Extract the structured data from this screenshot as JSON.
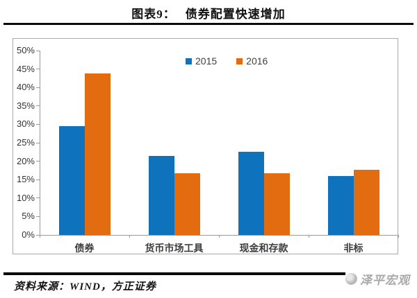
{
  "header": {
    "title_prefix": "图表9：",
    "title_text": "债券配置快速增加"
  },
  "chart_data": {
    "type": "bar",
    "categories": [
      "债券",
      "货币市场工具",
      "现金和存款",
      "非标"
    ],
    "series": [
      {
        "name": "2015",
        "color": "#0e72bc",
        "values": [
          29.5,
          21.5,
          22.5,
          16.0
        ]
      },
      {
        "name": "2016",
        "color": "#e36c10",
        "values": [
          43.8,
          16.7,
          16.7,
          17.6
        ]
      }
    ],
    "title": "债券配置快速增加",
    "xlabel": "",
    "ylabel": "",
    "ylim": [
      0,
      50
    ],
    "ytick_step": 5,
    "ytick_labels": [
      "0%",
      "5%",
      "10%",
      "15%",
      "20%",
      "25%",
      "30%",
      "35%",
      "40%",
      "45%",
      "50%"
    ],
    "grid": false,
    "legend_position": "top-center"
  },
  "legend": [
    {
      "label": "2015",
      "color": "#0e72bc"
    },
    {
      "label": "2016",
      "color": "#e36c10"
    }
  ],
  "footer": {
    "source_text": "资料来源：WIND，方正证券",
    "brand_text": "泽平宏观"
  },
  "colors": {
    "series_2015": "#0e72bc",
    "series_2016": "#e36c10",
    "axis": "#9a9a9a",
    "frame_border": "#aaaaaa",
    "rule": "#0a0a0a",
    "brand": "#a9a9a9"
  }
}
